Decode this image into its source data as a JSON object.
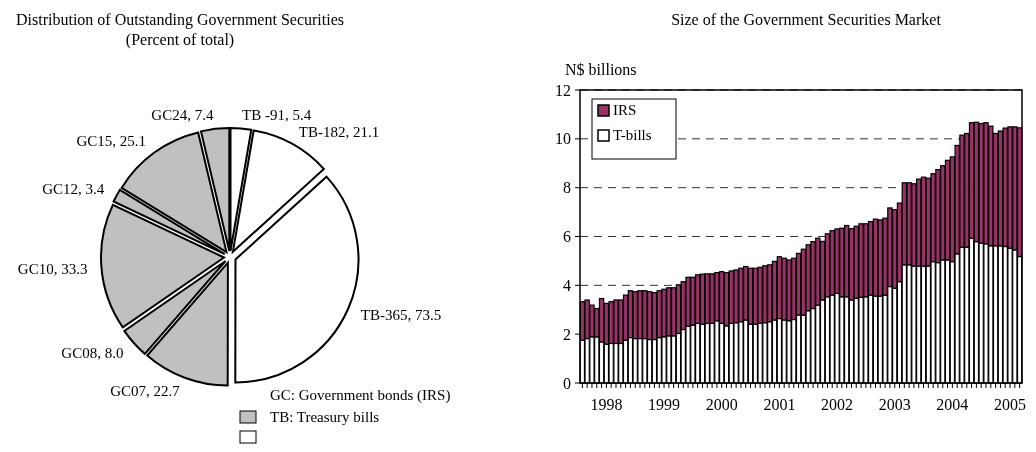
{
  "chart_data": [
    {
      "type": "pie",
      "title": "Distribution of Outstanding Government Securities",
      "subtitle": "(Percent of total)",
      "categories": [
        "TB -91",
        "TB-182",
        "TB-365",
        "GC07",
        "GC08",
        "GC10",
        "GC12",
        "GC15",
        "GC24"
      ],
      "values": [
        5.4,
        21.1,
        73.5,
        22.7,
        8.0,
        33.3,
        3.4,
        25.1,
        7.4
      ],
      "value_labels": [
        "5.4",
        "21.1",
        "73.5",
        "22.7",
        "8.0",
        "33.3",
        "3.4",
        "25.1",
        "7.4"
      ],
      "colors": [
        "#ffffff",
        "#ffffff",
        "#ffffff",
        "#c0c0c0",
        "#c0c0c0",
        "#c0c0c0",
        "#c0c0c0",
        "#c0c0c0",
        "#c0c0c0"
      ],
      "annotations": [
        "GC: Government bonds (IRS)",
        "TB: Treasury bills"
      ]
    },
    {
      "type": "bar",
      "title": "Size of the Government Securities Market",
      "ylabel": "N$ billions",
      "stacked": true,
      "categories": [
        null,
        null,
        null,
        null,
        null,
        "1998",
        null,
        null,
        null,
        null,
        null,
        null,
        null,
        null,
        null,
        null,
        null,
        "1999",
        null,
        null,
        null,
        null,
        null,
        null,
        null,
        null,
        null,
        null,
        null,
        "2000",
        null,
        null,
        null,
        null,
        null,
        null,
        null,
        null,
        null,
        null,
        null,
        "2001",
        null,
        null,
        null,
        null,
        null,
        null,
        null,
        null,
        null,
        null,
        null,
        "2002",
        null,
        null,
        null,
        null,
        null,
        null,
        null,
        null,
        null,
        null,
        null,
        "2003",
        null,
        null,
        null,
        null,
        null,
        null,
        null,
        null,
        null,
        null,
        null,
        "2004",
        null,
        null,
        null,
        null,
        null,
        null,
        null,
        null,
        null,
        null,
        null,
        "2005",
        null,
        null
      ],
      "series": [
        {
          "name": "T-bills",
          "color": "#ffffff",
          "values": [
            1.75,
            1.82,
            1.89,
            1.89,
            1.68,
            1.59,
            1.62,
            1.62,
            1.62,
            1.75,
            1.86,
            1.82,
            1.82,
            1.82,
            1.78,
            1.78,
            1.86,
            1.89,
            1.93,
            1.93,
            2.03,
            2.19,
            2.33,
            2.37,
            2.44,
            2.41,
            2.44,
            2.44,
            2.55,
            2.44,
            2.34,
            2.44,
            2.47,
            2.51,
            2.58,
            2.41,
            2.41,
            2.44,
            2.47,
            2.51,
            2.58,
            2.64,
            2.58,
            2.55,
            2.6,
            2.78,
            2.78,
            2.96,
            3.05,
            3.19,
            3.4,
            3.53,
            3.6,
            3.67,
            3.53,
            3.53,
            3.4,
            3.47,
            3.51,
            3.53,
            3.6,
            3.56,
            3.56,
            3.6,
            3.95,
            3.88,
            4.15,
            4.84,
            4.84,
            4.79,
            4.79,
            4.79,
            4.79,
            4.97,
            4.93,
            5.04,
            5.04,
            4.97,
            5.29,
            5.56,
            5.56,
            5.93,
            5.79,
            5.73,
            5.7,
            5.62,
            5.62,
            5.62,
            5.59,
            5.52,
            5.45,
            5.18
          ]
        },
        {
          "name": "IRS",
          "color": "#993366",
          "values": [
            1.58,
            1.58,
            1.3,
            1.16,
            1.78,
            1.67,
            1.71,
            1.78,
            1.78,
            1.85,
            1.92,
            1.92,
            1.96,
            1.96,
            1.96,
            1.92,
            1.92,
            1.95,
            1.97,
            1.97,
            1.99,
            1.96,
            2.0,
            1.96,
            1.99,
            2.05,
            2.03,
            2.03,
            1.97,
            2.12,
            2.18,
            2.15,
            2.16,
            2.19,
            2.19,
            2.29,
            2.29,
            2.3,
            2.33,
            2.33,
            2.4,
            2.53,
            2.53,
            2.49,
            2.51,
            2.53,
            2.7,
            2.7,
            2.74,
            2.74,
            2.4,
            2.58,
            2.64,
            2.64,
            2.81,
            2.92,
            2.92,
            2.95,
            3.01,
            2.99,
            3.01,
            3.15,
            3.12,
            3.15,
            3.22,
            3.22,
            3.22,
            3.36,
            3.36,
            3.37,
            3.56,
            3.64,
            3.6,
            3.6,
            3.81,
            3.86,
            4.08,
            4.29,
            4.44,
            4.59,
            4.66,
            4.73,
            4.89,
            4.9,
            4.96,
            4.9,
            4.6,
            4.7,
            4.85,
            4.97,
            5.04,
            5.27
          ]
        }
      ],
      "ylim": [
        0,
        12
      ],
      "yticks": [
        0,
        2,
        4,
        6,
        8,
        10,
        12
      ],
      "grid": "y",
      "line_style": "dashed",
      "legend": "top left"
    }
  ]
}
